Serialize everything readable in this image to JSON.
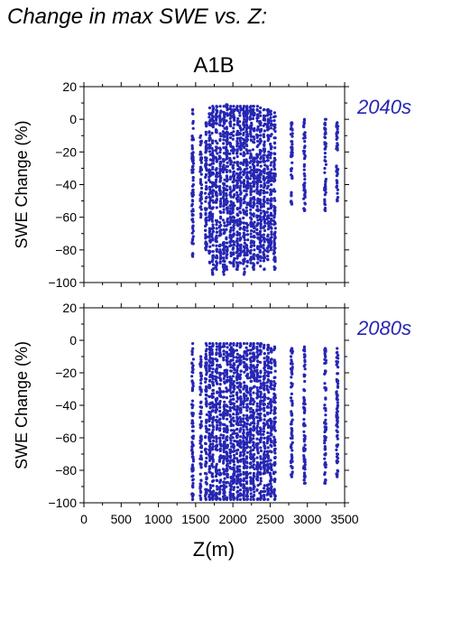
{
  "figure": {
    "title": "Change in max SWE vs. Z:",
    "scenario": "A1B",
    "point_color": "#2626b4",
    "text_color": "#000000"
  },
  "chart_data": [
    {
      "type": "scatter",
      "period_label": "2040s",
      "ylabel": "SWE Change (%)",
      "xlabel": "",
      "xlim": [
        0,
        3500
      ],
      "ylim": [
        -100,
        20
      ],
      "yticks": [
        -100,
        -80,
        -60,
        -40,
        -20,
        0,
        20
      ],
      "xticks": [
        0,
        500,
        1000,
        1500,
        2000,
        2500,
        3000,
        3500
      ],
      "grid": false,
      "columns": [
        {
          "x": 1460,
          "y_range": [
            -84,
            6
          ]
        },
        {
          "x": 1570,
          "y_range": [
            -60,
            -10
          ]
        },
        {
          "x": 1640,
          "y_range": [
            -80,
            -2
          ]
        },
        {
          "x": 1690,
          "y_range": [
            -88,
            7
          ]
        },
        {
          "x": 1730,
          "y_range": [
            -95,
            8
          ]
        },
        {
          "x": 1780,
          "y_range": [
            -92,
            8
          ]
        },
        {
          "x": 1830,
          "y_range": [
            -88,
            8
          ]
        },
        {
          "x": 1880,
          "y_range": [
            -95,
            8
          ]
        },
        {
          "x": 1920,
          "y_range": [
            -92,
            9
          ]
        },
        {
          "x": 1970,
          "y_range": [
            -88,
            8
          ]
        },
        {
          "x": 2010,
          "y_range": [
            -90,
            8
          ]
        },
        {
          "x": 2060,
          "y_range": [
            -92,
            8
          ]
        },
        {
          "x": 2100,
          "y_range": [
            -88,
            8
          ]
        },
        {
          "x": 2150,
          "y_range": [
            -95,
            8
          ]
        },
        {
          "x": 2190,
          "y_range": [
            -90,
            8
          ]
        },
        {
          "x": 2240,
          "y_range": [
            -88,
            8
          ]
        },
        {
          "x": 2280,
          "y_range": [
            -92,
            8
          ]
        },
        {
          "x": 2330,
          "y_range": [
            -88,
            8
          ]
        },
        {
          "x": 2370,
          "y_range": [
            -90,
            7
          ]
        },
        {
          "x": 2420,
          "y_range": [
            -92,
            6
          ]
        },
        {
          "x": 2470,
          "y_range": [
            -86,
            6
          ]
        },
        {
          "x": 2510,
          "y_range": [
            -80,
            5
          ]
        },
        {
          "x": 2560,
          "y_range": [
            -92,
            4
          ]
        },
        {
          "x": 2790,
          "y_range": [
            -52,
            -2
          ]
        },
        {
          "x": 2960,
          "y_range": [
            -56,
            0
          ]
        },
        {
          "x": 3240,
          "y_range": [
            -56,
            0
          ]
        },
        {
          "x": 3400,
          "y_range": [
            -50,
            -2
          ]
        }
      ]
    },
    {
      "type": "scatter",
      "period_label": "2080s",
      "ylabel": "SWE Change (%)",
      "xlabel": "Z(m)",
      "xlim": [
        0,
        3500
      ],
      "ylim": [
        -100,
        20
      ],
      "yticks": [
        -100,
        -80,
        -60,
        -40,
        -20,
        0,
        20
      ],
      "xticks": [
        0,
        500,
        1000,
        1500,
        2000,
        2500,
        3000,
        3500
      ],
      "xtick_labels": [
        "0",
        "500",
        "1000",
        "1500",
        "2000",
        "2500",
        "3000",
        "3500"
      ],
      "grid": false,
      "columns": [
        {
          "x": 1460,
          "y_range": [
            -98,
            -2
          ]
        },
        {
          "x": 1570,
          "y_range": [
            -98,
            -10
          ]
        },
        {
          "x": 1640,
          "y_range": [
            -98,
            -2
          ]
        },
        {
          "x": 1690,
          "y_range": [
            -98,
            -2
          ]
        },
        {
          "x": 1730,
          "y_range": [
            -98,
            -2
          ]
        },
        {
          "x": 1780,
          "y_range": [
            -98,
            -2
          ]
        },
        {
          "x": 1830,
          "y_range": [
            -98,
            -2
          ]
        },
        {
          "x": 1880,
          "y_range": [
            -98,
            -2
          ]
        },
        {
          "x": 1920,
          "y_range": [
            -98,
            -2
          ]
        },
        {
          "x": 1970,
          "y_range": [
            -98,
            -2
          ]
        },
        {
          "x": 2010,
          "y_range": [
            -98,
            -2
          ]
        },
        {
          "x": 2060,
          "y_range": [
            -98,
            -2
          ]
        },
        {
          "x": 2100,
          "y_range": [
            -98,
            -2
          ]
        },
        {
          "x": 2150,
          "y_range": [
            -98,
            -2
          ]
        },
        {
          "x": 2190,
          "y_range": [
            -98,
            -2
          ]
        },
        {
          "x": 2240,
          "y_range": [
            -98,
            -2
          ]
        },
        {
          "x": 2280,
          "y_range": [
            -98,
            -2
          ]
        },
        {
          "x": 2330,
          "y_range": [
            -98,
            -2
          ]
        },
        {
          "x": 2370,
          "y_range": [
            -98,
            -2
          ]
        },
        {
          "x": 2420,
          "y_range": [
            -98,
            -3
          ]
        },
        {
          "x": 2470,
          "y_range": [
            -98,
            -3
          ]
        },
        {
          "x": 2510,
          "y_range": [
            -96,
            -5
          ]
        },
        {
          "x": 2560,
          "y_range": [
            -98,
            -4
          ]
        },
        {
          "x": 2790,
          "y_range": [
            -84,
            -5
          ]
        },
        {
          "x": 2960,
          "y_range": [
            -88,
            -4
          ]
        },
        {
          "x": 3240,
          "y_range": [
            -88,
            -5
          ]
        },
        {
          "x": 3400,
          "y_range": [
            -84,
            -5
          ]
        }
      ]
    }
  ]
}
